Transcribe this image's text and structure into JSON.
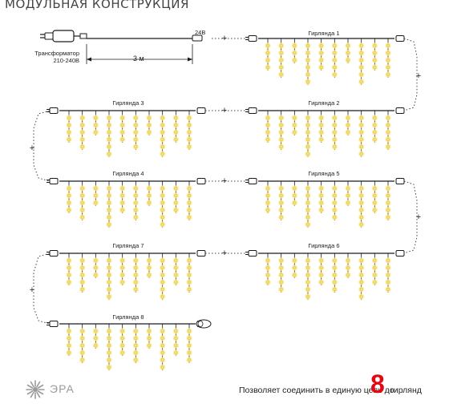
{
  "title": "МОДУЛЬНАЯ КОНСТРУКЦИЯ",
  "transformer": {
    "line1": "Трансформатор",
    "line2": "210-240В"
  },
  "voltage": "24В",
  "cable_length": "3 м",
  "plus": "+",
  "garlands": [
    {
      "label": "Гирлянда 1"
    },
    {
      "label": "Гирлянда 2"
    },
    {
      "label": "Гирлянда 3"
    },
    {
      "label": "Гирлянда 4"
    },
    {
      "label": "Гирлянда 5"
    },
    {
      "label": "Гирлянда 6"
    },
    {
      "label": "Гирлянда 7"
    },
    {
      "label": "Гирлянда 8"
    }
  ],
  "footer": {
    "text": "Позволяет соединить в единую цепь до",
    "number": "8",
    "unit": "гирлянд"
  },
  "brand": "ЭРА",
  "colors": {
    "wire": "#1a1a1a",
    "bulb": "#f6e27a",
    "bulb_glow": "#fff6c4",
    "accent": "#e30613",
    "dashed": "#444444"
  }
}
